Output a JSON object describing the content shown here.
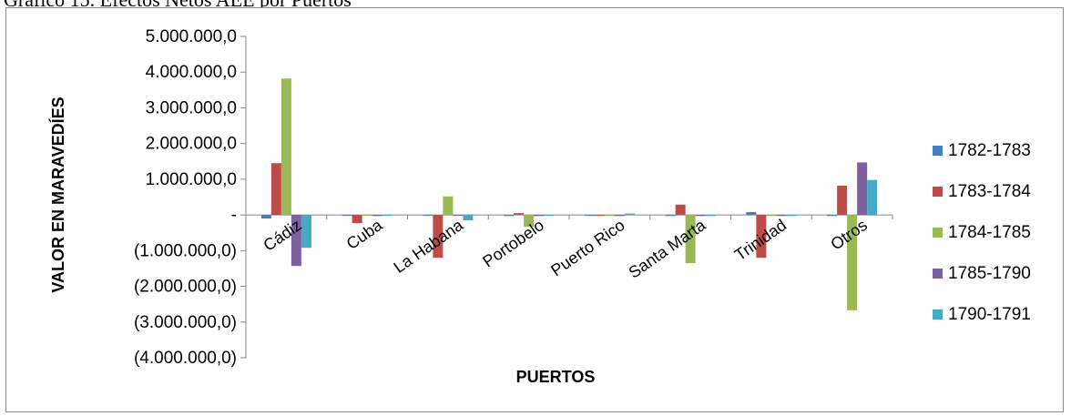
{
  "caption": "Gráfico 15. Efectos Netos AEE por Puertos",
  "chart_data": {
    "type": "bar",
    "title": "",
    "xlabel": "PUERTOS",
    "ylabel": "VALOR EN MARAVEDÍES",
    "ylim": [
      -4000000,
      5000000
    ],
    "yticks": [
      5000000,
      4000000,
      3000000,
      2000000,
      1000000,
      0,
      -1000000,
      -2000000,
      -3000000,
      -4000000
    ],
    "ytick_labels": [
      "5.000.000,0",
      "4.000.000,0",
      "3.000.000,0",
      "2.000.000,0",
      "1.000.000,0",
      "-",
      "(1.000.000,0)",
      "(2.000.000,0)",
      "(3.000.000,0)",
      "(4.000.000,0)"
    ],
    "categories": [
      "Cádiz",
      "Cuba",
      "La Habana",
      "Portobelo",
      "Puerto Rico",
      "Santa Marta",
      "Trinidad",
      "Otros"
    ],
    "legend_position": "right",
    "grid": false,
    "series": [
      {
        "name": "1782-1783",
        "color": "#4a7ebb",
        "values": [
          -100000,
          0,
          0,
          -30000,
          -20000,
          -30000,
          80000,
          -30000
        ]
      },
      {
        "name": "1783-1784",
        "color": "#be4b48",
        "values": [
          1450000,
          -230000,
          -1200000,
          50000,
          -20000,
          290000,
          -1200000,
          820000
        ]
      },
      {
        "name": "1784-1785",
        "color": "#98b954",
        "values": [
          3820000,
          0,
          520000,
          -330000,
          -30000,
          -1350000,
          -30000,
          -2670000
        ]
      },
      {
        "name": "1785-1790",
        "color": "#7d60a0",
        "values": [
          -1430000,
          -30000,
          0,
          -30000,
          -30000,
          -30000,
          -30000,
          1470000
        ]
      },
      {
        "name": "1790-1791",
        "color": "#46aac5",
        "values": [
          -920000,
          0,
          -150000,
          0,
          40000,
          -30000,
          -30000,
          980000
        ]
      }
    ]
  }
}
